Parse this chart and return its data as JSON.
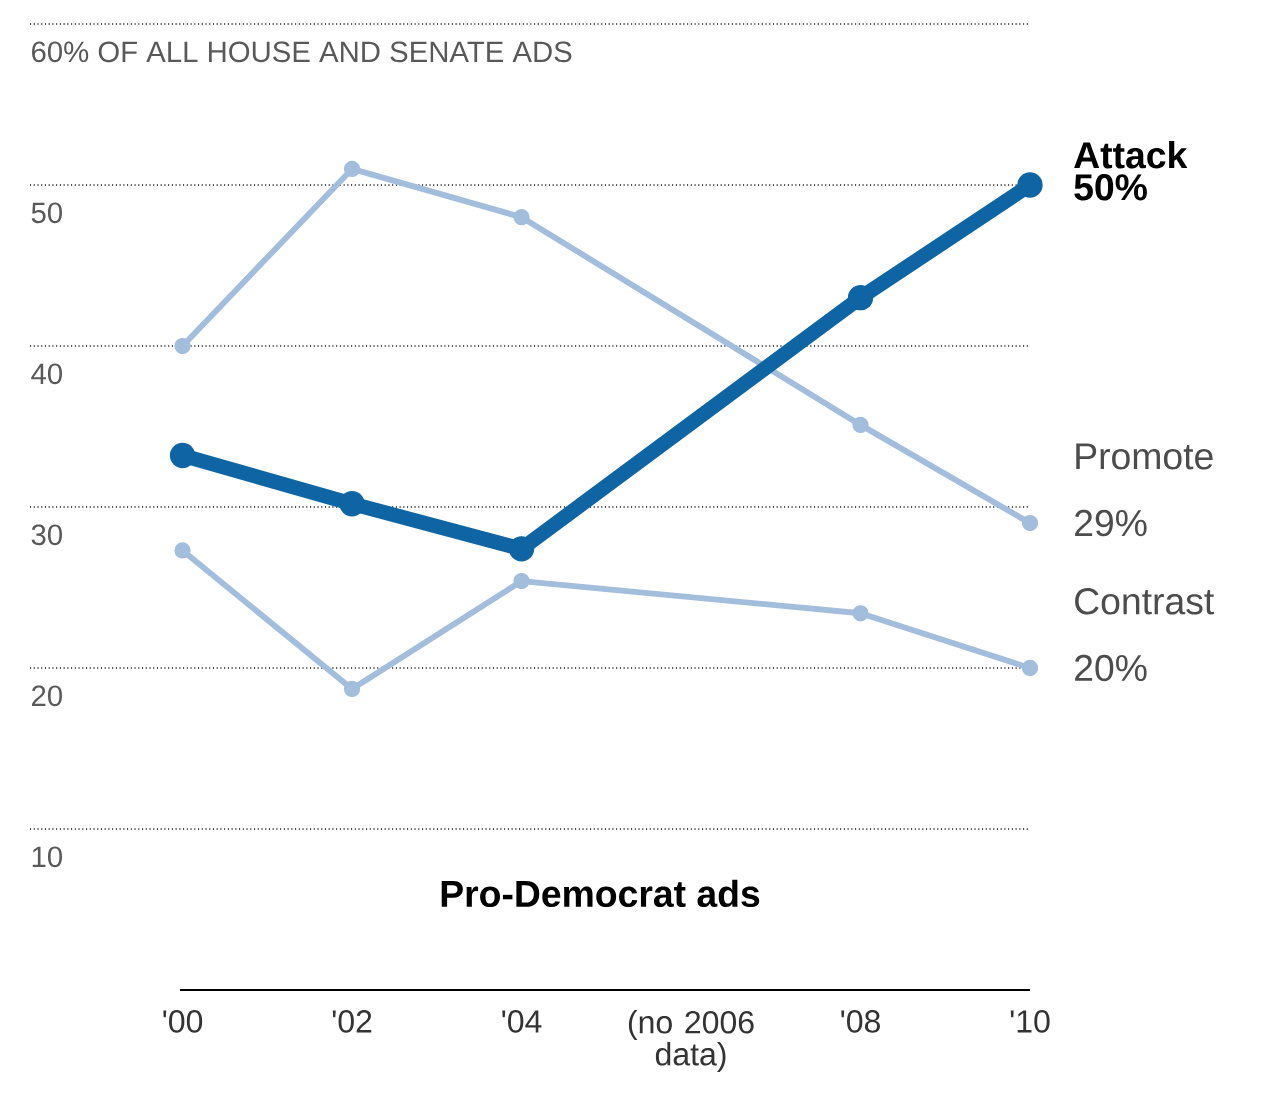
{
  "chart_data": {
    "type": "line",
    "x": [
      2000,
      2002,
      2004,
      2008,
      2010
    ],
    "series": [
      {
        "name": "Attack",
        "color": "#0f65a3",
        "values": [
          33.2,
          30.2,
          27.4,
          43,
          50
        ],
        "value_labels": [
          null,
          null,
          null,
          null,
          "50%"
        ]
      },
      {
        "name": "Promote",
        "color": "#a3bddc",
        "values": [
          40,
          51,
          48,
          35.1,
          29
        ],
        "value_labels": [
          null,
          null,
          null,
          null,
          "29%"
        ]
      },
      {
        "name": "Contrast",
        "color": "#a3bddc",
        "values": [
          27.3,
          18.7,
          25.4,
          23.4,
          20
        ],
        "value_labels": [
          null,
          null,
          null,
          null,
          "20%"
        ]
      }
    ],
    "xlim": [
      1998.2,
      2010
    ],
    "ylim": [
      0,
      60
    ],
    "xticks": [
      {
        "value": 2000,
        "label": "'00"
      },
      {
        "value": 2002,
        "label": "'02"
      },
      {
        "value": 2004,
        "label": "'04"
      },
      {
        "value": 2006,
        "label": "(no 2006 data)"
      },
      {
        "value": 2008,
        "label": "'08"
      },
      {
        "value": 2010,
        "label": "'10"
      }
    ],
    "yticks": [
      10,
      20,
      30,
      40,
      50,
      {
        "value": 60,
        "label": "60% OF ALL HOUSE AND SENATE ADS"
      }
    ],
    "grid": "y",
    "marker": "circle",
    "annotations": [
      "Pro-Democrat ads"
    ]
  }
}
